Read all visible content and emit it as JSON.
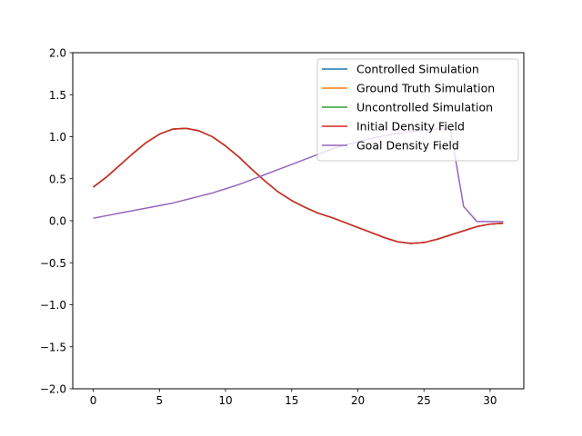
{
  "chart_data": {
    "type": "line",
    "xlim": [
      -1.55,
      32.55
    ],
    "ylim": [
      -2.0,
      2.0
    ],
    "xticks": [
      0,
      5,
      10,
      15,
      20,
      25,
      30
    ],
    "yticks": [
      -2.0,
      -1.5,
      -1.0,
      -0.5,
      0.0,
      0.5,
      1.0,
      1.5,
      2.0
    ],
    "xtick_labels": [
      "0",
      "5",
      "10",
      "15",
      "20",
      "25",
      "30"
    ],
    "ytick_labels": [
      "−2.0",
      "−1.5",
      "−1.0",
      "−0.5",
      "0.0",
      "0.5",
      "1.0",
      "1.5",
      "2.0"
    ],
    "grid": false,
    "legend_position": "top-right",
    "series": [
      {
        "name": "Controlled Simulation",
        "color": "#1f77b4",
        "x": [
          0,
          1,
          2,
          3,
          4,
          5,
          6,
          7,
          8,
          9,
          10,
          11,
          12,
          13,
          14,
          15,
          16,
          17,
          18,
          19,
          20,
          21,
          22,
          23,
          24,
          25,
          26,
          27,
          28,
          29,
          30,
          31
        ],
        "y": [
          0.4,
          0.52,
          0.66,
          0.8,
          0.93,
          1.03,
          1.09,
          1.1,
          1.07,
          1.0,
          0.89,
          0.76,
          0.61,
          0.47,
          0.34,
          0.24,
          0.16,
          0.09,
          0.04,
          -0.02,
          -0.08,
          -0.14,
          -0.2,
          -0.25,
          -0.27,
          -0.26,
          -0.22,
          -0.17,
          -0.12,
          -0.07,
          -0.04,
          -0.03
        ]
      },
      {
        "name": "Ground Truth Simulation",
        "color": "#ff7f0e",
        "x": [
          0,
          1,
          2,
          3,
          4,
          5,
          6,
          7,
          8,
          9,
          10,
          11,
          12,
          13,
          14,
          15,
          16,
          17,
          18,
          19,
          20,
          21,
          22,
          23,
          24,
          25,
          26,
          27,
          28,
          29,
          30,
          31
        ],
        "y": [
          0.4,
          0.52,
          0.66,
          0.8,
          0.93,
          1.03,
          1.09,
          1.1,
          1.07,
          1.0,
          0.89,
          0.76,
          0.61,
          0.47,
          0.34,
          0.24,
          0.16,
          0.09,
          0.04,
          -0.02,
          -0.08,
          -0.14,
          -0.2,
          -0.25,
          -0.27,
          -0.26,
          -0.22,
          -0.17,
          -0.12,
          -0.07,
          -0.04,
          -0.03
        ]
      },
      {
        "name": "Uncontrolled Simulation",
        "color": "#2ca02c",
        "x": [
          0,
          1,
          2,
          3,
          4,
          5,
          6,
          7,
          8,
          9,
          10,
          11,
          12,
          13,
          14,
          15,
          16,
          17,
          18,
          19,
          20,
          21,
          22,
          23,
          24,
          25,
          26,
          27,
          28,
          29,
          30,
          31
        ],
        "y": [
          0.4,
          0.52,
          0.66,
          0.8,
          0.93,
          1.03,
          1.09,
          1.1,
          1.07,
          1.0,
          0.89,
          0.76,
          0.61,
          0.47,
          0.34,
          0.24,
          0.16,
          0.09,
          0.04,
          -0.02,
          -0.08,
          -0.14,
          -0.2,
          -0.25,
          -0.27,
          -0.26,
          -0.22,
          -0.17,
          -0.12,
          -0.07,
          -0.04,
          -0.03
        ]
      },
      {
        "name": "Initial Density Field",
        "color": "#d62728",
        "x": [
          0,
          1,
          2,
          3,
          4,
          5,
          6,
          7,
          8,
          9,
          10,
          11,
          12,
          13,
          14,
          15,
          16,
          17,
          18,
          19,
          20,
          21,
          22,
          23,
          24,
          25,
          26,
          27,
          28,
          29,
          30,
          31
        ],
        "y": [
          0.4,
          0.52,
          0.66,
          0.8,
          0.93,
          1.03,
          1.09,
          1.1,
          1.07,
          1.0,
          0.89,
          0.76,
          0.61,
          0.47,
          0.34,
          0.24,
          0.16,
          0.09,
          0.04,
          -0.02,
          -0.08,
          -0.14,
          -0.2,
          -0.25,
          -0.27,
          -0.26,
          -0.22,
          -0.17,
          -0.12,
          -0.07,
          -0.04,
          -0.03
        ]
      },
      {
        "name": "Goal Density Field",
        "color": "#9467bd",
        "x": [
          0,
          1,
          2,
          3,
          4,
          5,
          6,
          7,
          8,
          9,
          10,
          11,
          12,
          13,
          14,
          15,
          16,
          17,
          18,
          19,
          20,
          21,
          22,
          23,
          24,
          25,
          26,
          27,
          28,
          29,
          30,
          31
        ],
        "y": [
          0.03,
          0.06,
          0.09,
          0.12,
          0.15,
          0.18,
          0.21,
          0.25,
          0.29,
          0.33,
          0.38,
          0.43,
          0.49,
          0.55,
          0.61,
          0.67,
          0.73,
          0.79,
          0.85,
          0.9,
          0.94,
          0.98,
          1.01,
          1.04,
          1.06,
          1.08,
          1.09,
          1.09,
          0.17,
          -0.01,
          -0.01,
          -0.01
        ]
      }
    ]
  }
}
